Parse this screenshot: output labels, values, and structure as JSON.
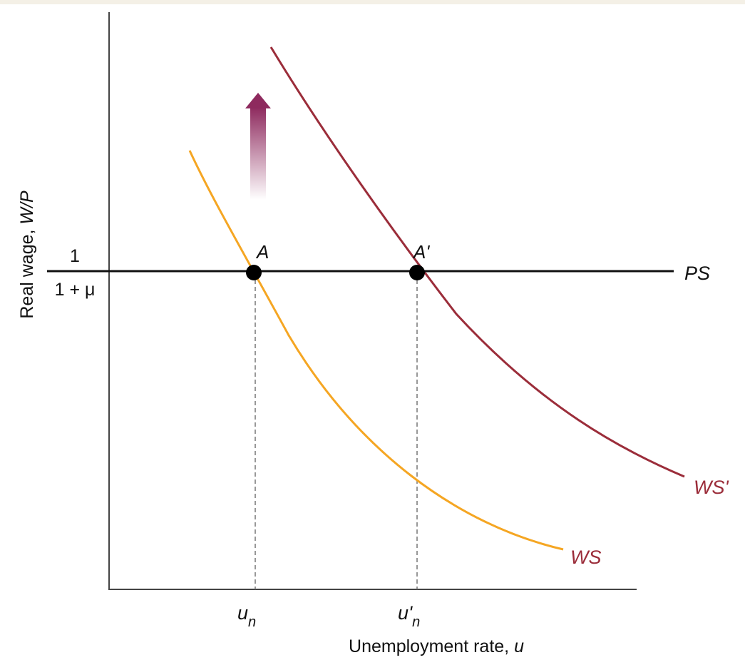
{
  "y_axis": {
    "title_text": "Real wage, ",
    "title_symbol": "W/P",
    "level_numerator": "1",
    "level_denominator": "1 + μ"
  },
  "x_axis": {
    "title_text": "Unemployment rate, ",
    "title_symbol": "u",
    "tick_un_base": "u",
    "tick_un_sub": "n",
    "tick_un_prime_base": "u'",
    "tick_un_prime_sub": "n"
  },
  "curves": {
    "ps_label": "PS",
    "ws_label": "WS",
    "ws_prime_label": "WS'"
  },
  "points": {
    "a_label": "A",
    "a_prime_label": "A'"
  },
  "colors": {
    "ws": "#f5a623",
    "ws_prime": "#9b2d3a",
    "arrow": "#8e2a5e",
    "axis": "#444444",
    "ps": "#111111"
  }
}
